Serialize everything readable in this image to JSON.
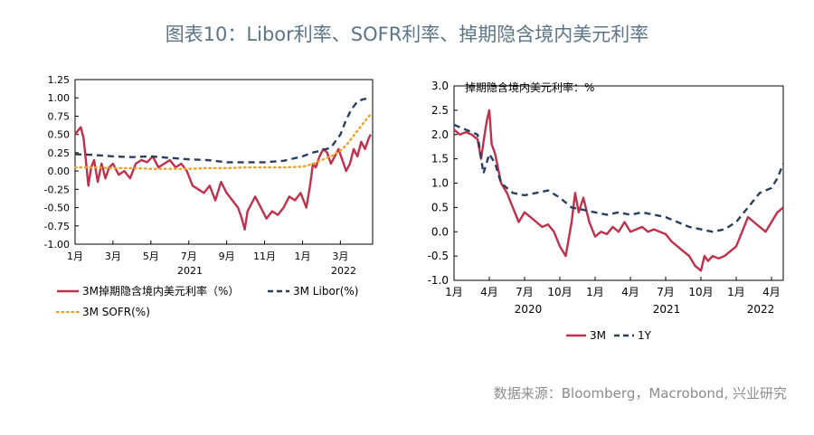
{
  "title": "图表10：Libor利率、SOFR利率、掉期隐含境内美元利率",
  "source": "数据来源：Bloomberg，Macrobond, 兴业研究",
  "colors": {
    "red": "#c0304a",
    "navy": "#2a3f5f",
    "orange": "#f0a020"
  },
  "chart_data": [
    {
      "type": "line",
      "title": "",
      "xlabel": "",
      "ylabel": "",
      "ylim": [
        -1.0,
        1.25
      ],
      "yticks": [
        "1.25",
        "1.00",
        "0.75",
        "0.50",
        "0.25",
        "0.00",
        "-0.25",
        "-0.50",
        "-0.75",
        "-1.00"
      ],
      "xtick_labels": [
        "1月",
        "3月",
        "5月",
        "7月",
        "9月",
        "11月",
        "1月",
        "3月"
      ],
      "year_labels": [
        "2021",
        "2022"
      ],
      "x_month_offsets": [
        0,
        2,
        4,
        6,
        8,
        10,
        12,
        14
      ],
      "x_range_months": [
        0,
        15.7
      ],
      "legend": [
        "3M掉期隐含境内美元利率（%）",
        "3M Libor(%)",
        "3M SOFR(%)"
      ],
      "series": [
        {
          "name": "3M掉期隐含境内美元利率（%）",
          "style": "solid",
          "color": "red",
          "x": [
            0,
            0.15,
            0.3,
            0.45,
            0.55,
            0.7,
            0.85,
            1.0,
            1.2,
            1.4,
            1.6,
            1.8,
            2.0,
            2.3,
            2.6,
            2.9,
            3.2,
            3.5,
            3.8,
            4.1,
            4.4,
            4.7,
            5.0,
            5.3,
            5.6,
            5.9,
            6.2,
            6.5,
            6.8,
            7.1,
            7.4,
            7.7,
            8.0,
            8.3,
            8.6,
            8.8,
            8.95,
            9.1,
            9.3,
            9.5,
            9.8,
            10.1,
            10.4,
            10.7,
            11.0,
            11.3,
            11.6,
            11.9,
            12.2,
            12.4,
            12.55,
            12.7,
            12.9,
            13.1,
            13.3,
            13.5,
            13.7,
            13.9,
            14.1,
            14.3,
            14.5,
            14.7,
            14.9,
            15.1,
            15.3,
            15.5,
            15.6
          ],
          "values": [
            0.5,
            0.55,
            0.6,
            0.45,
            0.2,
            -0.2,
            0.05,
            0.15,
            -0.15,
            0.1,
            -0.1,
            0.05,
            0.1,
            -0.05,
            0.0,
            -0.1,
            0.1,
            0.15,
            0.12,
            0.2,
            0.05,
            0.1,
            0.15,
            0.05,
            0.1,
            0.0,
            -0.2,
            -0.25,
            -0.3,
            -0.2,
            -0.4,
            -0.15,
            -0.3,
            -0.4,
            -0.5,
            -0.65,
            -0.8,
            -0.55,
            -0.45,
            -0.35,
            -0.5,
            -0.65,
            -0.55,
            -0.6,
            -0.5,
            -0.35,
            -0.4,
            -0.3,
            -0.5,
            -0.2,
            0.1,
            0.05,
            0.2,
            0.3,
            0.25,
            0.1,
            0.2,
            0.3,
            0.15,
            0.0,
            0.1,
            0.3,
            0.2,
            0.4,
            0.3,
            0.45,
            0.5
          ]
        },
        {
          "name": "3M Libor(%)",
          "style": "dashed",
          "color": "navy",
          "x": [
            0,
            1,
            2,
            3,
            4,
            5,
            6,
            7,
            8,
            9,
            10,
            11,
            12,
            12.5,
            13,
            13.5,
            14,
            14.3,
            14.6,
            14.9,
            15.2,
            15.6
          ],
          "values": [
            0.23,
            0.22,
            0.2,
            0.19,
            0.2,
            0.18,
            0.16,
            0.15,
            0.12,
            0.12,
            0.12,
            0.14,
            0.2,
            0.25,
            0.28,
            0.32,
            0.5,
            0.7,
            0.85,
            0.95,
            0.98,
            1.0
          ]
        },
        {
          "name": "3M SOFR(%)",
          "style": "dotted",
          "color": "orange",
          "x": [
            0,
            1,
            2,
            3,
            4,
            5,
            6,
            7,
            8,
            9,
            10,
            11,
            12,
            12.6,
            13,
            13.5,
            14,
            14.3,
            14.6,
            14.9,
            15.2,
            15.6
          ],
          "values": [
            0.05,
            0.05,
            0.04,
            0.04,
            0.03,
            0.03,
            0.03,
            0.04,
            0.04,
            0.05,
            0.05,
            0.05,
            0.06,
            0.1,
            0.15,
            0.2,
            0.28,
            0.35,
            0.45,
            0.55,
            0.65,
            0.78
          ]
        }
      ]
    },
    {
      "type": "line",
      "title": "掉期隐含境内美元利率：%",
      "xlabel": "",
      "ylabel": "",
      "ylim": [
        -1.0,
        3.0
      ],
      "yticks": [
        "3.0",
        "2.5",
        "2.0",
        "1.5",
        "1.0",
        "0.5",
        "0.0",
        "-0.5",
        "-1.0"
      ],
      "xtick_labels": [
        "1月",
        "4月",
        "7月",
        "10月",
        "1月",
        "4月",
        "7月",
        "10月",
        "1月",
        "4月"
      ],
      "year_labels": [
        "2020",
        "2021",
        "2022"
      ],
      "x_month_offsets": [
        0,
        3,
        6,
        9,
        12,
        15,
        18,
        21,
        24,
        27
      ],
      "x_range_months": [
        0,
        28
      ],
      "legend": [
        "3M",
        "1Y"
      ],
      "series": [
        {
          "name": "3M",
          "style": "solid",
          "color": "red",
          "x": [
            0,
            0.5,
            1,
            1.5,
            2,
            2.3,
            2.6,
            2.8,
            3.0,
            3.2,
            3.5,
            4,
            4.5,
            5,
            5.5,
            6,
            6.5,
            7,
            7.5,
            8,
            8.5,
            9,
            9.5,
            10,
            10.3,
            10.6,
            11,
            11.5,
            12,
            12.5,
            13,
            13.5,
            14,
            14.5,
            15,
            15.5,
            16,
            16.5,
            17,
            17.5,
            18,
            18.5,
            19,
            19.5,
            20,
            20.5,
            21,
            21.3,
            21.6,
            22,
            22.5,
            23,
            23.5,
            24,
            24.5,
            25,
            25.5,
            26,
            26.5,
            27,
            27.5,
            28
          ],
          "values": [
            2.1,
            2.0,
            2.05,
            2.0,
            1.9,
            1.5,
            2.0,
            2.3,
            2.5,
            1.8,
            1.6,
            1.0,
            0.8,
            0.5,
            0.2,
            0.4,
            0.3,
            0.2,
            0.1,
            0.15,
            0.0,
            -0.3,
            -0.5,
            0.2,
            0.8,
            0.4,
            0.7,
            0.2,
            -0.1,
            0.0,
            -0.05,
            0.1,
            0.0,
            0.2,
            0.0,
            0.05,
            0.1,
            0.0,
            0.05,
            0.0,
            -0.05,
            -0.2,
            -0.3,
            -0.4,
            -0.5,
            -0.7,
            -0.8,
            -0.5,
            -0.6,
            -0.5,
            -0.55,
            -0.5,
            -0.4,
            -0.3,
            0.0,
            0.3,
            0.2,
            0.1,
            0.0,
            0.2,
            0.4,
            0.5
          ]
        },
        {
          "name": "1Y",
          "style": "dashed",
          "color": "navy",
          "x": [
            0,
            1,
            2,
            2.5,
            3,
            3.5,
            4,
            5,
            6,
            7,
            8,
            9,
            10,
            11,
            12,
            13,
            14,
            15,
            16,
            17,
            18,
            19,
            20,
            21,
            22,
            23,
            24,
            25,
            26,
            26.5,
            27,
            27.5,
            28
          ],
          "values": [
            2.2,
            2.1,
            2.0,
            1.2,
            1.6,
            1.4,
            1.0,
            0.8,
            0.75,
            0.8,
            0.85,
            0.7,
            0.5,
            0.45,
            0.4,
            0.35,
            0.4,
            0.35,
            0.4,
            0.35,
            0.3,
            0.2,
            0.1,
            0.05,
            0.0,
            0.05,
            0.2,
            0.5,
            0.8,
            0.85,
            0.9,
            1.1,
            1.4
          ]
        }
      ]
    }
  ]
}
